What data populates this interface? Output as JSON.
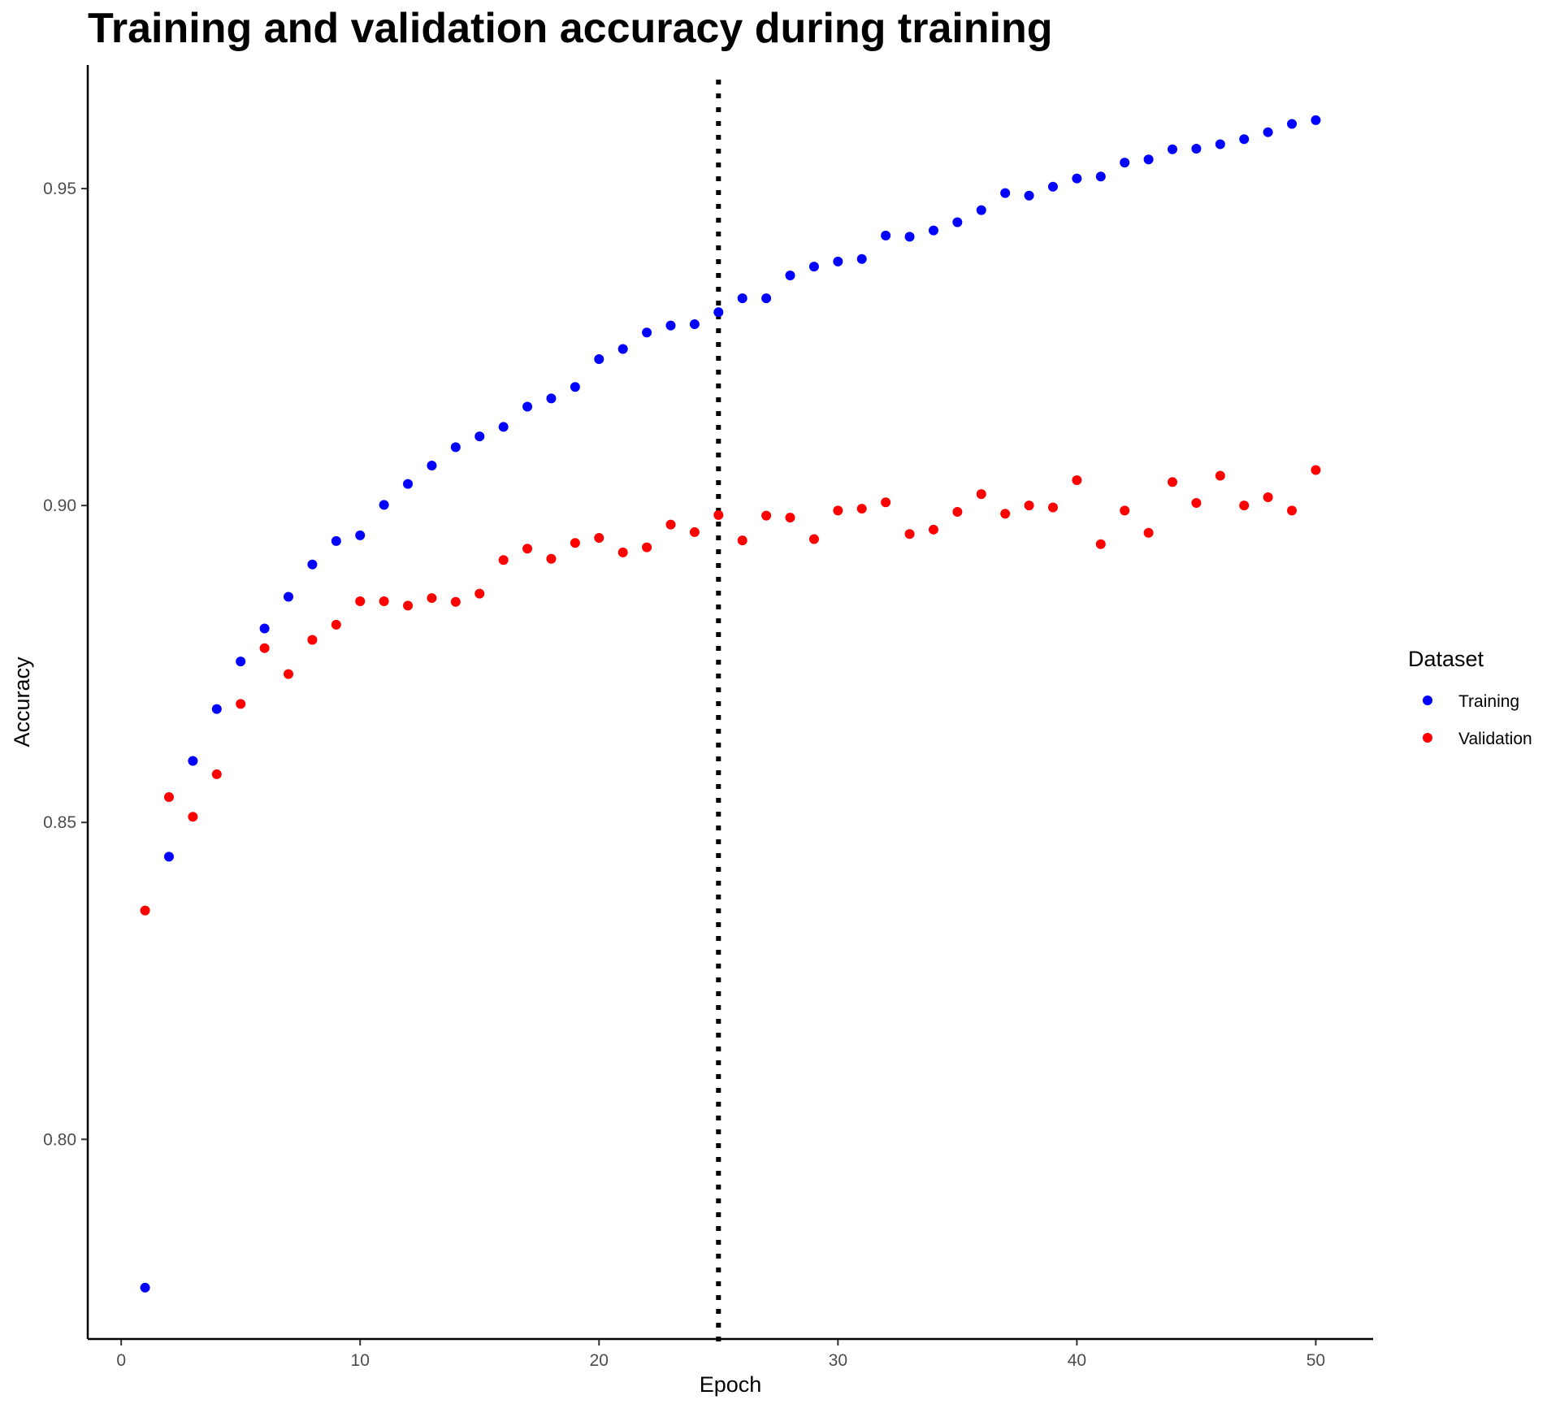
{
  "chart_data": {
    "type": "scatter",
    "title": "Training and validation accuracy during training",
    "xlabel": "Epoch",
    "ylabel": "Accuracy",
    "xlim": [
      -1.4,
      52.4
    ],
    "ylim": [
      0.7685,
      0.9695
    ],
    "x_ticks": [
      0,
      10,
      20,
      30,
      40,
      50
    ],
    "x_tick_labels": [
      "0",
      "10",
      "20",
      "30",
      "40",
      "50"
    ],
    "y_ticks": [
      0.8,
      0.85,
      0.9,
      0.95
    ],
    "y_tick_labels": [
      "0.80",
      "0.85",
      "0.90",
      "0.95"
    ],
    "grid": false,
    "legend_title": "Dataset",
    "legend_position": "right",
    "vline": {
      "x": 25,
      "style": "dotted",
      "color": "#000000"
    },
    "x": [
      1,
      2,
      3,
      4,
      5,
      6,
      7,
      8,
      9,
      10,
      11,
      12,
      13,
      14,
      15,
      16,
      17,
      18,
      19,
      20,
      21,
      22,
      23,
      24,
      25,
      26,
      27,
      28,
      29,
      30,
      31,
      32,
      33,
      34,
      35,
      36,
      37,
      38,
      39,
      40,
      41,
      42,
      43,
      44,
      45,
      46,
      47,
      48,
      49,
      50
    ],
    "series": [
      {
        "name": "Training",
        "color": "#0000ff",
        "values": [
          0.7766,
          0.8446,
          0.8597,
          0.8679,
          0.8754,
          0.8806,
          0.8856,
          0.8907,
          0.8944,
          0.8953,
          0.9001,
          0.9034,
          0.9063,
          0.9092,
          0.9109,
          0.9124,
          0.9156,
          0.9169,
          0.9187,
          0.9231,
          0.9247,
          0.9273,
          0.9284,
          0.9286,
          0.9305,
          0.9327,
          0.9327,
          0.9363,
          0.9377,
          0.9385,
          0.9389,
          0.9426,
          0.9424,
          0.9434,
          0.9447,
          0.9466,
          0.9493,
          0.9489,
          0.9503,
          0.9516,
          0.9519,
          0.9541,
          0.9546,
          0.9562,
          0.9563,
          0.957,
          0.9578,
          0.9589,
          0.9602,
          0.9608
        ]
      },
      {
        "name": "Validation",
        "color": "#ff0000",
        "values": [
          0.8361,
          0.854,
          0.8509,
          0.8576,
          0.8687,
          0.8775,
          0.8734,
          0.8788,
          0.8812,
          0.8849,
          0.8849,
          0.8842,
          0.8854,
          0.8848,
          0.8861,
          0.8914,
          0.8932,
          0.8916,
          0.8941,
          0.8949,
          0.8926,
          0.8934,
          0.897,
          0.8958,
          0.8985,
          0.8945,
          0.8984,
          0.8981,
          0.8947,
          0.8992,
          0.8995,
          0.9005,
          0.8955,
          0.8962,
          0.899,
          0.9018,
          0.8987,
          0.9,
          0.8997,
          0.904,
          0.8939,
          0.8992,
          0.8957,
          0.9037,
          0.9004,
          0.9047,
          0.9,
          0.9013,
          0.8992,
          0.9056
        ]
      }
    ]
  }
}
